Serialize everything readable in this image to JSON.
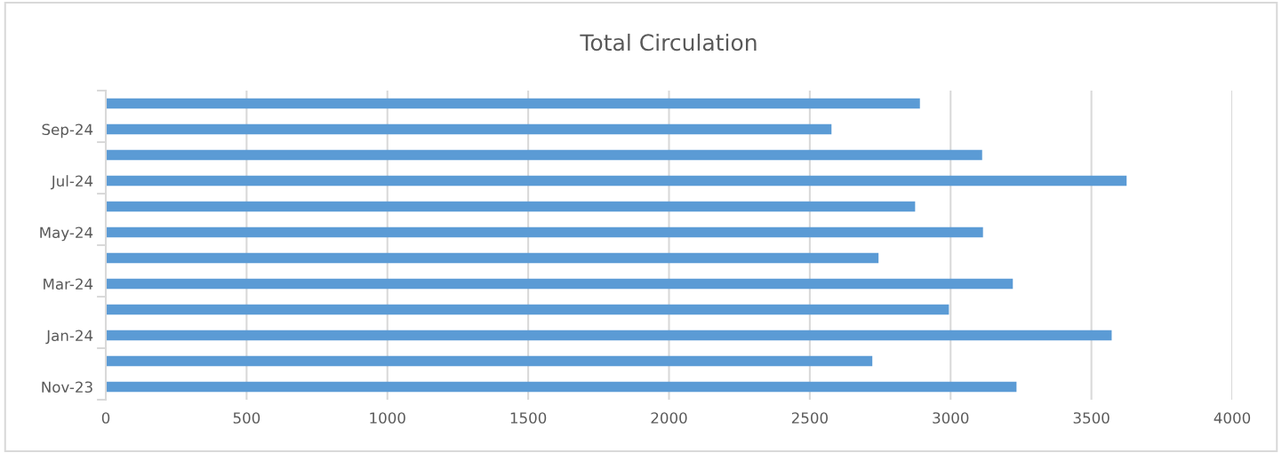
{
  "chart_data": {
    "type": "bar",
    "orientation": "horizontal",
    "title": "Total Circulation",
    "categories": [
      null,
      "Sep-24",
      null,
      "Jul-24",
      null,
      "May-24",
      null,
      "Mar-24",
      null,
      "Jan-24",
      null,
      "Nov-23"
    ],
    "values": [
      2891,
      2577,
      3112,
      3625,
      2874,
      3115,
      2744,
      3221,
      2994,
      3572,
      2722,
      3234
    ],
    "color": "#5b9bd5",
    "xlim": [
      0,
      4000
    ],
    "xticks": [
      0,
      500,
      1000,
      1500,
      2000,
      2500,
      3000,
      3500,
      4000
    ],
    "grid": "x",
    "legend": false
  }
}
